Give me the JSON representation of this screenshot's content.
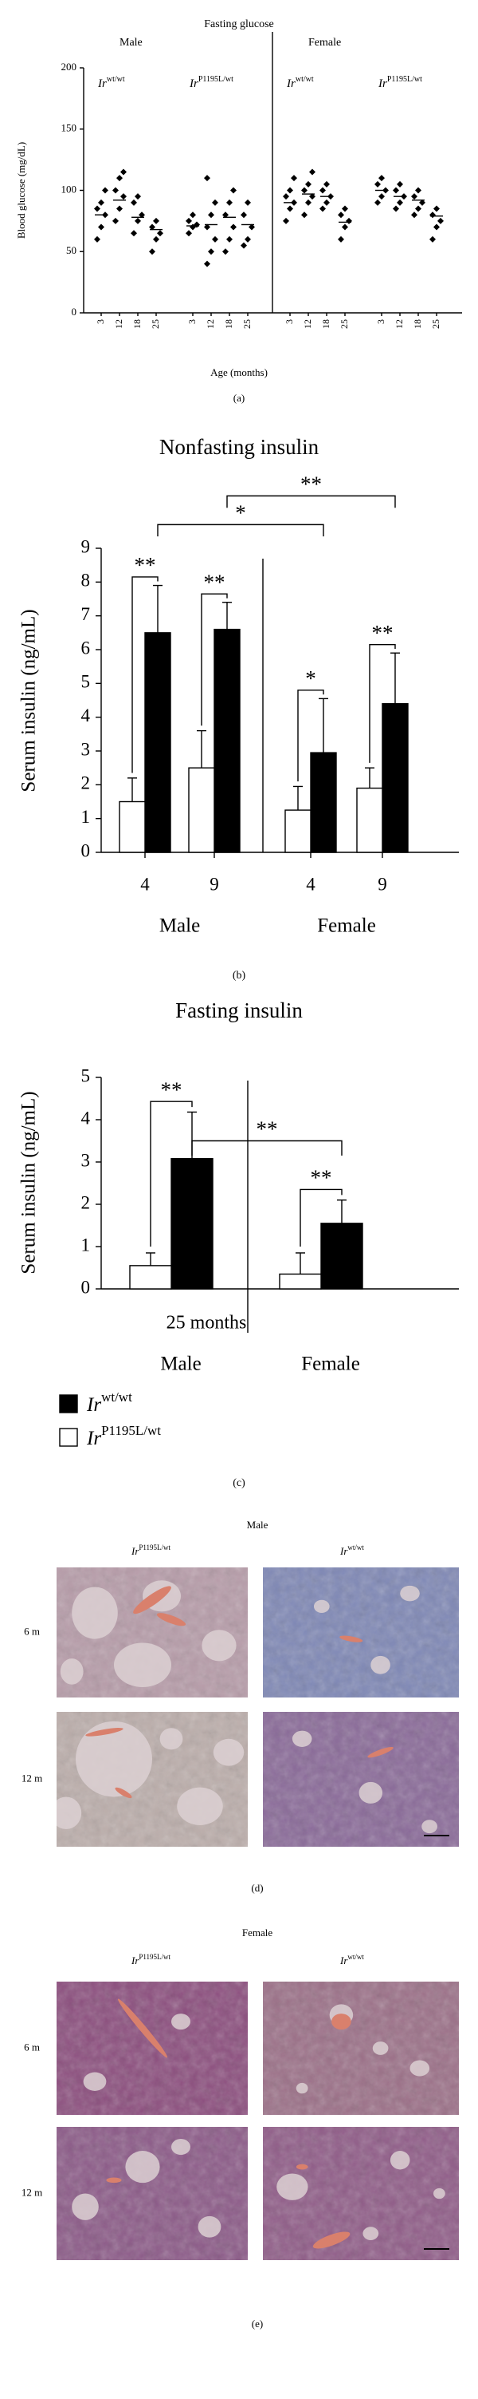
{
  "chart_data": [
    {
      "type": "dotplot",
      "title": "Fasting glucose",
      "ylabel": "Blood glucose (mg/dL)",
      "xlabel": "Age (months)",
      "panel_label": "(a)",
      "ylim": [
        0,
        200
      ],
      "yticks": [
        0,
        50,
        100,
        150,
        200
      ],
      "categories": [
        3,
        12,
        18,
        25
      ],
      "panels": [
        {
          "name": "Male",
          "series": [
            {
              "name": {
                "base": "Ir",
                "sup": "wt/wt"
              },
              "points": [
                [
                  60,
                  70,
                  80,
                  85,
                  90,
                  100
                ],
                [
                  75,
                  85,
                  95,
                  100,
                  110,
                  115
                ],
                [
                  65,
                  75,
                  80,
                  90,
                  95
                ],
                [
                  50,
                  60,
                  65,
                  70,
                  75
                ]
              ],
              "means": [
                80,
                92,
                78,
                68
              ]
            },
            {
              "name": {
                "base": "Ir",
                "sup": "P1195L/wt"
              },
              "points": [
                [
                  65,
                  70,
                  72,
                  75,
                  80
                ],
                [
                  40,
                  50,
                  60,
                  70,
                  80,
                  90,
                  110
                ],
                [
                  50,
                  60,
                  70,
                  80,
                  90,
                  100
                ],
                [
                  55,
                  60,
                  70,
                  80,
                  90
                ]
              ],
              "means": [
                71,
                72,
                78,
                72
              ]
            }
          ]
        },
        {
          "name": "Female",
          "series": [
            {
              "name": {
                "base": "Ir",
                "sup": "wt/wt"
              },
              "points": [
                [
                  75,
                  85,
                  90,
                  95,
                  100,
                  110
                ],
                [
                  80,
                  90,
                  95,
                  100,
                  105,
                  115
                ],
                [
                  85,
                  90,
                  95,
                  100,
                  105
                ],
                [
                  60,
                  70,
                  75,
                  80,
                  85
                ]
              ],
              "means": [
                90,
                97,
                95,
                74
              ]
            },
            {
              "name": {
                "base": "Ir",
                "sup": "P1195L/wt"
              },
              "points": [
                [
                  90,
                  95,
                  100,
                  105,
                  110
                ],
                [
                  85,
                  90,
                  95,
                  100,
                  105
                ],
                [
                  80,
                  85,
                  90,
                  95,
                  100
                ],
                [
                  60,
                  70,
                  75,
                  80,
                  85
                ]
              ],
              "means": [
                100,
                95,
                92,
                79
              ]
            }
          ]
        }
      ]
    },
    {
      "type": "bar",
      "title": "Nonfasting insulin",
      "ylabel": "Serum insulin (ng/mL)",
      "panel_label": "(b)",
      "ylim": [
        0,
        9
      ],
      "yticks": [
        0,
        1,
        2,
        3,
        4,
        5,
        6,
        7,
        8,
        9
      ],
      "groups": [
        {
          "name": "Male",
          "categories": [
            4,
            9
          ]
        },
        {
          "name": "Female",
          "categories": [
            4,
            9
          ]
        }
      ],
      "series": [
        {
          "color": "#000000",
          "values": [
            6.5,
            6.6,
            2.95,
            4.4
          ],
          "errors": [
            1.4,
            0.8,
            1.6,
            1.5
          ]
        },
        {
          "color": "#ffffff",
          "values": [
            1.5,
            2.5,
            1.25,
            1.9
          ],
          "errors": [
            0.7,
            1.1,
            0.7,
            0.6
          ]
        }
      ],
      "annotations": [
        "**",
        "**",
        "*",
        "**",
        "*",
        "**"
      ]
    },
    {
      "type": "bar",
      "title": "Fasting insulin",
      "ylabel": "Serum insulin (ng/mL)",
      "xlabel": "25 months",
      "panel_label": "(c)",
      "ylim": [
        0,
        5
      ],
      "yticks": [
        0,
        1,
        2,
        3,
        4,
        5
      ],
      "groups": [
        {
          "name": "Male"
        },
        {
          "name": "Female"
        }
      ],
      "series": [
        {
          "name": {
            "base": "Ir",
            "sup": "wt/wt"
          },
          "color": "#000000",
          "values": [
            3.08,
            1.55
          ],
          "errors": [
            1.1,
            0.55
          ]
        },
        {
          "name": {
            "base": "Ir",
            "sup": "P1195L/wt"
          },
          "color": "#ffffff",
          "values": [
            0.55,
            0.35
          ],
          "errors": [
            0.3,
            0.5
          ]
        }
      ],
      "annotations": [
        "**",
        "**",
        "**"
      ]
    }
  ],
  "micrographs": [
    {
      "title": "Male",
      "columns": [
        {
          "base": "Ir",
          "sup": "P1195L/wt"
        },
        {
          "base": "Ir",
          "sup": "wt/wt"
        }
      ],
      "rows": [
        "6 m",
        "12 m"
      ],
      "panel_label": "(d)"
    },
    {
      "title": "Female",
      "columns": [
        {
          "base": "Ir",
          "sup": "P1195L/wt"
        },
        {
          "base": "Ir",
          "sup": "wt/wt"
        }
      ],
      "rows": [
        "6 m",
        "12 m"
      ],
      "panel_label": "(e)"
    }
  ]
}
